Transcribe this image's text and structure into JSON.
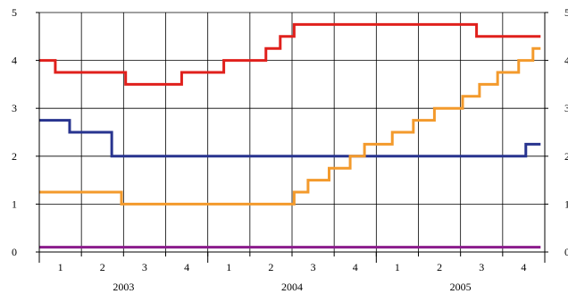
{
  "chart_data": {
    "type": "line",
    "step": true,
    "x_unit": "quarter",
    "x_start": "2003 Q1",
    "x_end": "2005 Q4",
    "ylim": [
      0,
      5
    ],
    "yticks": [
      "0",
      "1",
      "2",
      "3",
      "4",
      "5"
    ],
    "quarter_labels": [
      "1",
      "2",
      "3",
      "4",
      "1",
      "2",
      "3",
      "4",
      "1",
      "2",
      "3",
      "4"
    ],
    "years": [
      "2003",
      "2004",
      "2005"
    ],
    "grid": true,
    "series": [
      {
        "color": "#e0201c",
        "points": [
          [
            0.0,
            4.0
          ],
          [
            0.38,
            3.75
          ],
          [
            2.05,
            3.5
          ],
          [
            3.38,
            3.75
          ],
          [
            4.38,
            4.0
          ],
          [
            5.38,
            4.25
          ],
          [
            5.72,
            4.5
          ],
          [
            6.05,
            4.75
          ],
          [
            10.38,
            4.5
          ],
          [
            11.9,
            4.5
          ]
        ]
      },
      {
        "color": "#28348f",
        "points": [
          [
            0.0,
            2.75
          ],
          [
            0.72,
            2.5
          ],
          [
            1.72,
            2.0
          ],
          [
            11.55,
            2.25
          ],
          [
            11.9,
            2.25
          ]
        ]
      },
      {
        "color": "#f39a2c",
        "points": [
          [
            0.0,
            1.25
          ],
          [
            1.95,
            1.0
          ],
          [
            6.05,
            1.25
          ],
          [
            6.38,
            1.5
          ],
          [
            6.88,
            1.75
          ],
          [
            7.38,
            2.0
          ],
          [
            7.72,
            2.25
          ],
          [
            8.38,
            2.5
          ],
          [
            8.88,
            2.75
          ],
          [
            9.38,
            3.0
          ],
          [
            10.05,
            3.25
          ],
          [
            10.45,
            3.5
          ],
          [
            10.88,
            3.75
          ],
          [
            11.38,
            4.0
          ],
          [
            11.72,
            4.25
          ],
          [
            11.9,
            4.25
          ]
        ]
      },
      {
        "color": "#8b1c8c",
        "points": [
          [
            0.0,
            0.1
          ],
          [
            11.9,
            0.1
          ]
        ]
      }
    ]
  }
}
